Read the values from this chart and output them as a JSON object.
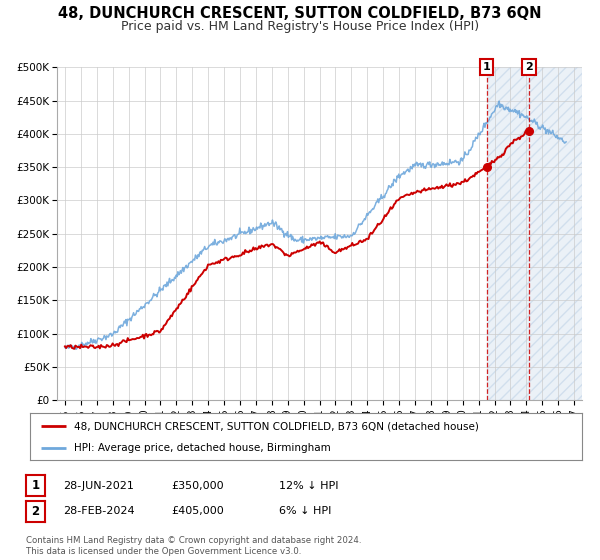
{
  "title": "48, DUNCHURCH CRESCENT, SUTTON COLDFIELD, B73 6QN",
  "subtitle": "Price paid vs. HM Land Registry's House Price Index (HPI)",
  "ylim": [
    0,
    500000
  ],
  "yticks": [
    0,
    50000,
    100000,
    150000,
    200000,
    250000,
    300000,
    350000,
    400000,
    450000,
    500000
  ],
  "ytick_labels": [
    "£0",
    "£50K",
    "£100K",
    "£150K",
    "£200K",
    "£250K",
    "£300K",
    "£350K",
    "£400K",
    "£450K",
    "£500K"
  ],
  "xlim_start": 1994.5,
  "xlim_end": 2027.5,
  "xticks": [
    1995,
    1996,
    1997,
    1998,
    1999,
    2000,
    2001,
    2002,
    2003,
    2004,
    2005,
    2006,
    2007,
    2008,
    2009,
    2010,
    2011,
    2012,
    2013,
    2014,
    2015,
    2016,
    2017,
    2018,
    2019,
    2020,
    2021,
    2022,
    2023,
    2024,
    2025,
    2026,
    2027
  ],
  "hpi_color": "#6fa8dc",
  "price_color": "#cc0000",
  "marker1_x": 2021.5,
  "marker1_y": 350000,
  "marker2_x": 2024.17,
  "marker2_y": 405000,
  "marker1_date": "28-JUN-2021",
  "marker1_price": "£350,000",
  "marker1_hpi": "12% ↓ HPI",
  "marker2_date": "28-FEB-2024",
  "marker2_price": "£405,000",
  "marker2_hpi": "6% ↓ HPI",
  "legend_line1": "48, DUNCHURCH CRESCENT, SUTTON COLDFIELD, B73 6QN (detached house)",
  "legend_line2": "HPI: Average price, detached house, Birmingham",
  "footnote": "Contains HM Land Registry data © Crown copyright and database right 2024.\nThis data is licensed under the Open Government Licence v3.0.",
  "highlight_start": 2021.5,
  "highlight_end": 2027.5,
  "background_color": "#ffffff",
  "grid_color": "#cccccc",
  "title_fontsize": 10.5,
  "subtitle_fontsize": 9
}
